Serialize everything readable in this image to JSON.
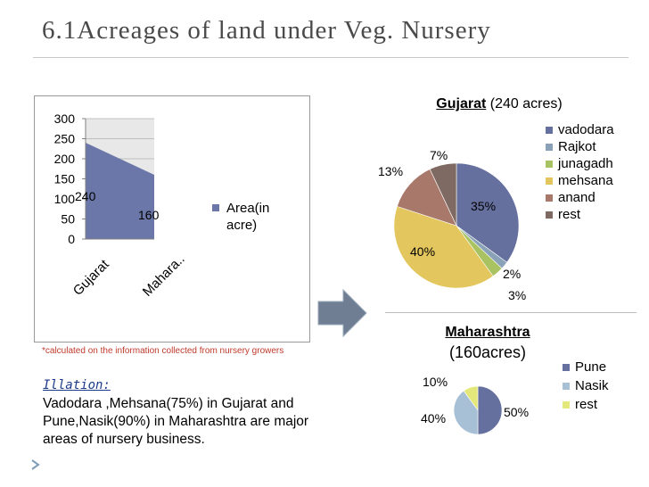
{
  "slide": {
    "title": "6.1Acreages of land under Veg. Nursery",
    "note": "*calculated on the information collected from nursery growers",
    "illation_heading": "Illation:",
    "illation_text": "Vadodara ,Mehsana(75%) in Gujarat and Pune,Nasik(90%) in Maharashtra are major  areas of nursery business.",
    "arrow_icon": "right-arrow-icon",
    "footer_icon": "chevron-bullet-icon"
  },
  "chart_data": [
    {
      "type": "area",
      "title": "",
      "categories": [
        "Gujarat",
        "Mahara.."
      ],
      "series": [
        {
          "name": "Area(in acre)",
          "values": [
            240,
            160
          ]
        }
      ],
      "data_labels": [
        "240",
        "160"
      ],
      "ylim": [
        0,
        300
      ],
      "yticks": [
        0,
        50,
        100,
        150,
        200,
        250,
        300
      ],
      "ytick_labels": [
        "0",
        "50",
        "100",
        "150",
        "200",
        "250",
        "300"
      ],
      "legend": "right",
      "colors": {
        "fill": "#6b77a8",
        "back": "#e8e8e8"
      }
    },
    {
      "type": "pie",
      "title_bold": "Gujarat",
      "title_rest": " (240 acres)",
      "labels": [
        "vadodara",
        "Rajkot",
        "junagadh",
        "mehsana",
        "anand",
        "rest"
      ],
      "values": [
        35,
        2,
        3,
        40,
        13,
        7
      ],
      "value_labels": [
        "35%",
        "2%",
        "3%",
        "40%",
        "13%",
        "7%"
      ],
      "colors": [
        "#66709e",
        "#8aa2b8",
        "#a9c262",
        "#e3c65d",
        "#a8786b",
        "#7e6a62"
      ],
      "legend": "right"
    },
    {
      "type": "pie",
      "title_bold": "Maharashtra",
      "title_rest": "(160acres)",
      "labels": [
        "Pune",
        "Nasik",
        "rest"
      ],
      "values": [
        50,
        40,
        10
      ],
      "value_labels": [
        "50%",
        "40%",
        "10%"
      ],
      "colors": [
        "#66709e",
        "#a7c0d6",
        "#e4e87a"
      ],
      "legend": "right"
    }
  ]
}
